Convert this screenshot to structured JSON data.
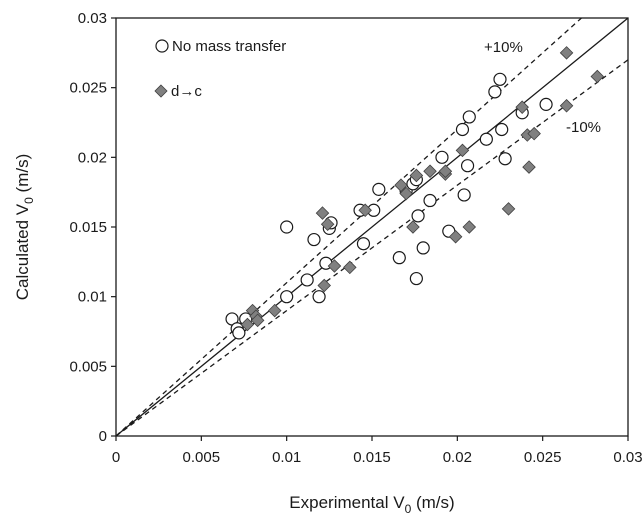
{
  "chart_data": {
    "type": "scatter",
    "xlabel": "Experimental V",
    "xlabel_sub": "0",
    "xlabel_unit": " (m/s)",
    "ylabel": "Calculated V",
    "ylabel_sub": "0",
    "ylabel_unit": " (m/s)",
    "xlim": [
      0,
      0.03
    ],
    "ylim": [
      0,
      0.03
    ],
    "grid": false,
    "legend_position": "top-left",
    "x_ticks": [
      "0",
      "0.005",
      "0.01",
      "0.015",
      "0.02",
      "0.025",
      "0.03"
    ],
    "y_ticks": [
      "0",
      "0.005",
      "0.01",
      "0.015",
      "0.02",
      "0.025",
      "0.03"
    ],
    "tick_values": [
      0,
      0.005,
      0.01,
      0.015,
      0.02,
      0.025,
      0.03
    ],
    "reference_lines": [
      {
        "slope": 1.0,
        "style": "solid"
      },
      {
        "slope": 1.1,
        "style": "dashed",
        "label": "+10%"
      },
      {
        "slope": 0.9,
        "style": "dashed",
        "label": "-10%"
      }
    ],
    "series": [
      {
        "name": "No mass transfer",
        "marker": "circle",
        "points": [
          [
            0.0068,
            0.0084
          ],
          [
            0.0071,
            0.0077
          ],
          [
            0.0072,
            0.0074
          ],
          [
            0.0076,
            0.0084
          ],
          [
            0.01,
            0.015
          ],
          [
            0.01,
            0.01
          ],
          [
            0.0112,
            0.0112
          ],
          [
            0.0116,
            0.0141
          ],
          [
            0.0119,
            0.01
          ],
          [
            0.0123,
            0.0124
          ],
          [
            0.0125,
            0.0149
          ],
          [
            0.0126,
            0.0153
          ],
          [
            0.0143,
            0.0162
          ],
          [
            0.0145,
            0.0138
          ],
          [
            0.0151,
            0.0162
          ],
          [
            0.0154,
            0.0177
          ],
          [
            0.0166,
            0.0128
          ],
          [
            0.017,
            0.0176
          ],
          [
            0.0174,
            0.0181
          ],
          [
            0.0176,
            0.0184
          ],
          [
            0.0176,
            0.0113
          ],
          [
            0.0177,
            0.0158
          ],
          [
            0.018,
            0.0135
          ],
          [
            0.0184,
            0.0169
          ],
          [
            0.0191,
            0.02
          ],
          [
            0.0195,
            0.0147
          ],
          [
            0.0203,
            0.022
          ],
          [
            0.0204,
            0.0173
          ],
          [
            0.0206,
            0.0194
          ],
          [
            0.0207,
            0.0229
          ],
          [
            0.0217,
            0.0213
          ],
          [
            0.0222,
            0.0247
          ],
          [
            0.0225,
            0.0256
          ],
          [
            0.0226,
            0.022
          ],
          [
            0.0228,
            0.0199
          ],
          [
            0.0238,
            0.0232
          ],
          [
            0.0252,
            0.0238
          ]
        ]
      },
      {
        "name": "d→c",
        "marker": "diamond",
        "points": [
          [
            0.0077,
            0.008
          ],
          [
            0.008,
            0.009
          ],
          [
            0.0082,
            0.0086
          ],
          [
            0.0083,
            0.0083
          ],
          [
            0.0093,
            0.009
          ],
          [
            0.0121,
            0.016
          ],
          [
            0.0122,
            0.0108
          ],
          [
            0.0124,
            0.0152
          ],
          [
            0.0128,
            0.0122
          ],
          [
            0.0137,
            0.0121
          ],
          [
            0.0146,
            0.0162
          ],
          [
            0.0167,
            0.018
          ],
          [
            0.017,
            0.0174
          ],
          [
            0.0174,
            0.015
          ],
          [
            0.0176,
            0.0187
          ],
          [
            0.0184,
            0.019
          ],
          [
            0.0193,
            0.0188
          ],
          [
            0.0193,
            0.019
          ],
          [
            0.0199,
            0.0143
          ],
          [
            0.0203,
            0.0205
          ],
          [
            0.0207,
            0.015
          ],
          [
            0.023,
            0.0163
          ],
          [
            0.0238,
            0.0236
          ],
          [
            0.0241,
            0.0216
          ],
          [
            0.0242,
            0.0193
          ],
          [
            0.0245,
            0.0217
          ],
          [
            0.0264,
            0.0275
          ],
          [
            0.0264,
            0.0237
          ],
          [
            0.0282,
            0.0258
          ]
        ]
      }
    ]
  }
}
